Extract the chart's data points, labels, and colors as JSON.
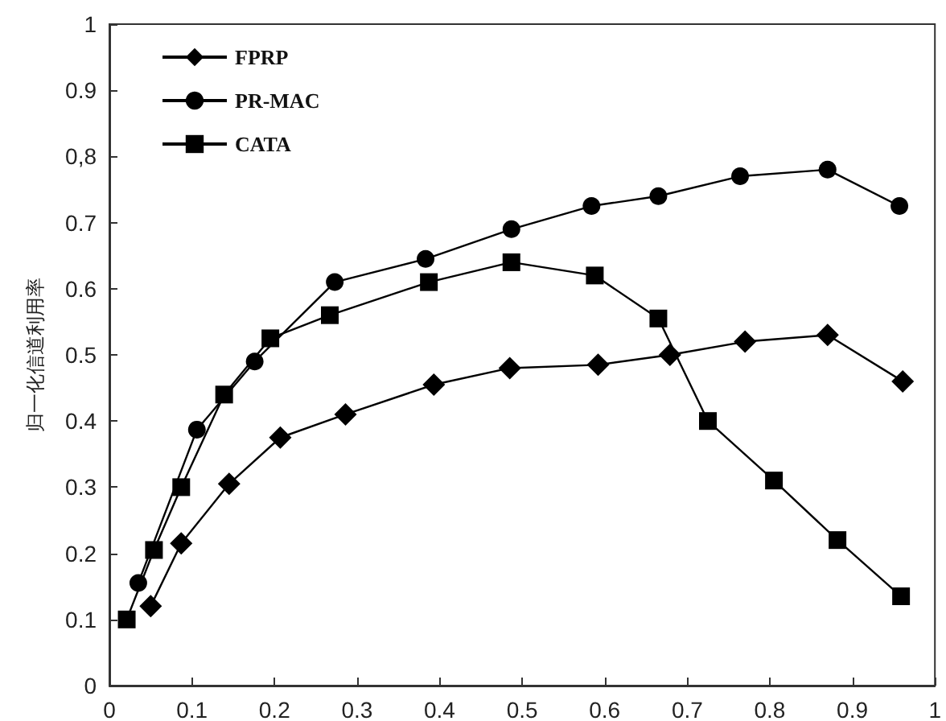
{
  "chart_data": {
    "type": "line",
    "ylabel": "归一化信道利用率",
    "xlim": [
      0,
      1
    ],
    "xticks": [
      0,
      0.1,
      0.2,
      0.3,
      0.4,
      0.5,
      0.6,
      0.7,
      0.8,
      0.9,
      1
    ],
    "ylim": [
      0,
      1
    ],
    "yticks": [
      0,
      0.1,
      0.2,
      0.3,
      0.4,
      0.5,
      0.6,
      0.7,
      {
        "value": 0.8,
        "label": "0,8"
      },
      0.9,
      1
    ],
    "grid": false,
    "legend": "top left",
    "line_style": "solid",
    "series": [
      {
        "name": "FPRP",
        "color": "#000000",
        "marker": "diamond",
        "x": [
          0.05,
          0.087,
          0.145,
          0.207,
          0.286,
          0.393,
          0.485,
          0.592,
          0.679,
          0.77,
          0.87,
          0.961
        ],
        "values": [
          0.12,
          0.215,
          0.305,
          0.375,
          0.41,
          0.455,
          0.48,
          0.485,
          0.5,
          0.52,
          0.53,
          0.46
        ]
      },
      {
        "name": "PR-MAC",
        "color": "#000000",
        "marker": "circle",
        "x": [
          0.035,
          0.106,
          0.176,
          0.273,
          0.383,
          0.487,
          0.584,
          0.665,
          0.764,
          0.87,
          0.957
        ],
        "values": [
          0.155,
          0.387,
          0.49,
          0.61,
          0.645,
          0.69,
          0.725,
          0.74,
          0.77,
          0.78,
          0.725
        ]
      },
      {
        "name": "CATA",
        "color": "#000000",
        "marker": "square",
        "x": [
          0.021,
          0.054,
          0.087,
          0.139,
          0.195,
          0.267,
          0.387,
          0.487,
          0.588,
          0.665,
          0.725,
          0.805,
          0.882,
          0.959
        ],
        "values": [
          0.1,
          0.205,
          0.3,
          0.44,
          0.525,
          0.56,
          0.61,
          0.64,
          0.62,
          0.555,
          0.4,
          0.31,
          0.22,
          0.135
        ]
      }
    ]
  }
}
